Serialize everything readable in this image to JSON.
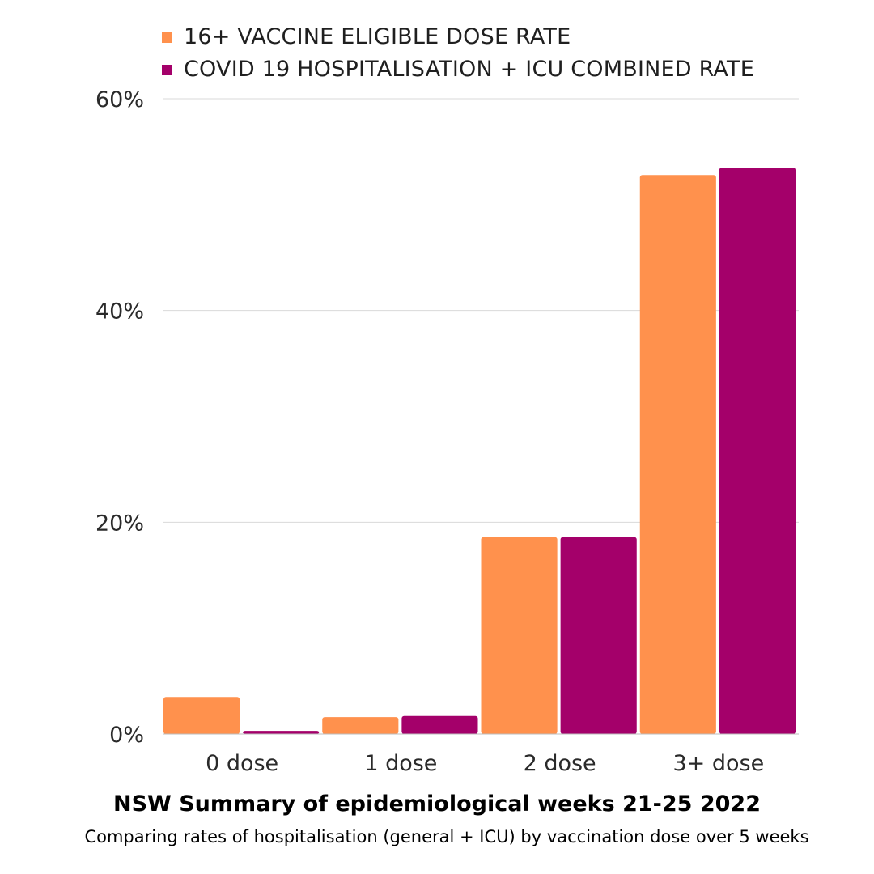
{
  "chart_data": {
    "type": "bar",
    "title": "NSW Summary of epidemiological weeks 21-25 2022",
    "subtitle": "Comparing rates of hospitalisation (general + ICU) by vaccination dose over 5 weeks",
    "categories": [
      "0 dose",
      "1 dose",
      "2 dose",
      "3+ dose"
    ],
    "series": [
      {
        "name": "16+ VACCINE ELIGIBLE DOSE RATE",
        "color": "#FF914D",
        "values": [
          3.5,
          1.6,
          18.6,
          52.8
        ]
      },
      {
        "name": "COVID 19 HOSPITALISATION + ICU COMBINED RATE",
        "color": "#A4006A",
        "values": [
          0.3,
          1.7,
          18.6,
          53.5
        ]
      }
    ],
    "y_ticks": [
      "0%",
      "20%",
      "40%",
      "60%"
    ],
    "y_tick_values": [
      0,
      20,
      40,
      60
    ],
    "ylim": [
      0,
      60
    ],
    "xlabel": "",
    "ylabel": "",
    "grid": true,
    "legend_position": "top-left"
  }
}
